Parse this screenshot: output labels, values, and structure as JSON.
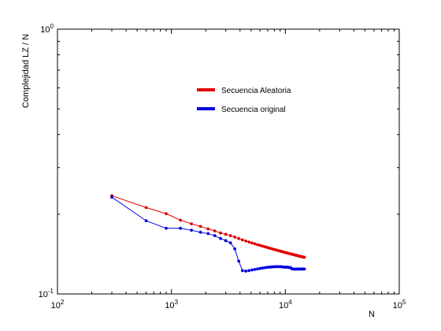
{
  "chart_data": {
    "type": "line",
    "title": "",
    "xlabel": "N",
    "ylabel": "Complejidad LZ / N",
    "xscale": "log",
    "yscale": "log",
    "xlim": [
      100,
      100000
    ],
    "ylim": [
      0.1,
      1
    ],
    "grid": false,
    "legend_position": "upper-center",
    "x_tick_labels": [
      {
        "value": 100,
        "base": "10",
        "exp": "2"
      },
      {
        "value": 1000,
        "base": "10",
        "exp": "3"
      },
      {
        "value": 10000,
        "base": "10",
        "exp": "4"
      },
      {
        "value": 100000,
        "base": "10",
        "exp": "5"
      }
    ],
    "y_tick_labels": [
      {
        "value": 0.1,
        "base": "10",
        "exp": "-1"
      },
      {
        "value": 1,
        "base": "10",
        "exp": "0"
      }
    ],
    "series": [
      {
        "name": "Secuencia Aleatoria",
        "color": "#e00000",
        "x": [
          300,
          600,
          900,
          1200,
          1500,
          1800,
          2100,
          2400,
          2700,
          3000,
          3300,
          3600,
          3900,
          4200,
          4500,
          4800,
          5100,
          5400,
          5700,
          6000,
          6300,
          6600,
          6900,
          7200,
          7500,
          7800,
          8100,
          8400,
          8700,
          9000,
          9300,
          9600,
          9900,
          10200,
          10500,
          10800,
          11100,
          11400,
          11700,
          12000,
          12300,
          12600,
          12900,
          13200,
          13500,
          13800,
          14100,
          14400,
          14700
        ],
        "y": [
          0.235,
          0.212,
          0.201,
          0.19,
          0.184,
          0.18,
          0.176,
          0.173,
          0.17,
          0.168,
          0.166,
          0.164,
          0.162,
          0.16,
          0.1585,
          0.157,
          0.1558,
          0.1546,
          0.1535,
          0.1525,
          0.1516,
          0.1507,
          0.1499,
          0.1491,
          0.1484,
          0.1477,
          0.147,
          0.1464,
          0.1458,
          0.1452,
          0.1446,
          0.1441,
          0.1436,
          0.1431,
          0.1426,
          0.1421,
          0.1417,
          0.1413,
          0.1409,
          0.1405,
          0.1401,
          0.1397,
          0.1394,
          0.139,
          0.1387,
          0.1384,
          0.1381,
          0.1378,
          0.1375
        ]
      },
      {
        "name": "Secuencia original",
        "color": "#0000e0",
        "x": [
          300,
          600,
          900,
          1200,
          1500,
          1800,
          2100,
          2400,
          2700,
          3000,
          3300,
          3600,
          3900,
          4200,
          4500,
          4800,
          5100,
          5400,
          5700,
          6000,
          6300,
          6600,
          6900,
          7200,
          7500,
          7800,
          8100,
          8400,
          8700,
          9000,
          9300,
          9600,
          9900,
          10200,
          10500,
          10800,
          11100,
          11400,
          11700,
          12000,
          12300,
          12600,
          12900,
          13200,
          13500,
          13800,
          14100,
          14400,
          14700
        ],
        "y": [
          0.232,
          0.189,
          0.177,
          0.177,
          0.174,
          0.171,
          0.169,
          0.166,
          0.162,
          0.159,
          0.156,
          0.148,
          0.133,
          0.1225,
          0.122,
          0.1225,
          0.1232,
          0.1238,
          0.1243,
          0.1248,
          0.1253,
          0.1257,
          0.126,
          0.1262,
          0.1264,
          0.1266,
          0.1268,
          0.1268,
          0.1268,
          0.1268,
          0.1267,
          0.1264,
          0.1262,
          0.1262,
          0.1262,
          0.1258,
          0.1258,
          0.1245,
          0.1242,
          0.1241,
          0.1241,
          0.1241,
          0.1242,
          0.1242,
          0.1242,
          0.1242,
          0.1242,
          0.1242,
          0.1242
        ]
      }
    ]
  }
}
